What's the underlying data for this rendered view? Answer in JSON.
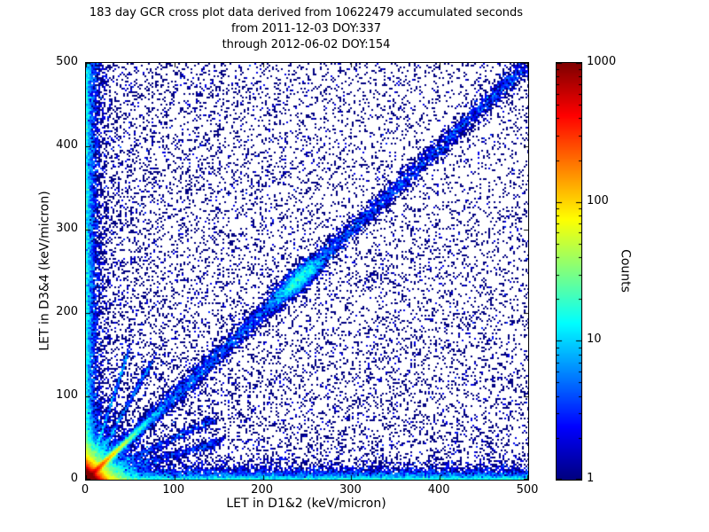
{
  "figure": {
    "title_line1": "183 day GCR cross plot data derived from 10622479 accumulated seconds",
    "title_line2": "from 2011-12-03 DOY:337",
    "title_line3": "through 2012-06-02 DOY:154"
  },
  "chart_data": {
    "type": "heatmap",
    "title": "183 day GCR cross plot data derived from 10622479 accumulated seconds from 2011-12-03 DOY:337 through 2012-06-02 DOY:154",
    "xlabel": "LET in D1&2 (keV/micron)",
    "ylabel": "LET in D3&4 (keV/micron)",
    "xlim": [
      0,
      500
    ],
    "ylim": [
      0,
      500
    ],
    "xticks": [
      0,
      100,
      200,
      300,
      400,
      500
    ],
    "yticks": [
      0,
      100,
      200,
      300,
      400,
      500
    ],
    "grid": false,
    "colorbar": {
      "label": "Counts",
      "scale": "log",
      "ticks": [
        1,
        10,
        100,
        1000
      ],
      "range": [
        1,
        1000
      ],
      "colormap": "jet",
      "position": "right"
    },
    "description": "2D histogram cross plot of linear energy transfer measured in detector pair D1&2 vs D3&4. Extremely dense red/yellow hotspot at the origin (counts ~1000), a bright yellow-green streak along the diagonal out to ~40 keV/micron, dense blue bands hugging both axes, a blue correlation band along y=x with a cyan cluster near (240,240), and sparse dark-blue single-count events scattered over the full plane, denser at low LET.",
    "features": [
      {
        "name": "origin-core",
        "dist": "exp2d",
        "scale_x": 4,
        "scale_y": 4,
        "n": 60000
      },
      {
        "name": "origin-halo",
        "dist": "exp2d",
        "scale_x": 13,
        "scale_y": 13,
        "n": 22000
      },
      {
        "name": "origin-diagonal-streak",
        "dist": "diag-exp",
        "scale": 16,
        "sigma": 1.6,
        "n": 14000
      },
      {
        "name": "left-edge-band",
        "dist": "edge-x",
        "scale": 5,
        "n": 8500
      },
      {
        "name": "bottom-edge-band",
        "dist": "edge-y",
        "scale": 5,
        "n": 8500
      },
      {
        "name": "main-diagonal-band",
        "dist": "diag",
        "sigma": 5,
        "bias": 1.25,
        "n": 7500
      },
      {
        "name": "diagonal-cluster",
        "dist": "diag-blob",
        "center": 240,
        "spread": 14,
        "sigma": 6,
        "n": 2400
      },
      {
        "name": "low-x-background",
        "dist": "uniform-pow",
        "bias_x": 2.2,
        "bias_y": 1.0,
        "n": 5000
      },
      {
        "name": "low-y-background",
        "dist": "uniform-pow",
        "bias_x": 1.0,
        "bias_y": 2.2,
        "n": 5000
      },
      {
        "name": "uniform-background",
        "dist": "uniform-pow",
        "bias_x": 1.0,
        "bias_y": 1.0,
        "n": 5200
      },
      {
        "name": "origin-rays",
        "dist": "rays",
        "slopes": [
          0.3,
          0.5,
          1.9,
          3.2
        ],
        "rmax": 160,
        "sigma": 3,
        "n": 2600
      }
    ]
  }
}
